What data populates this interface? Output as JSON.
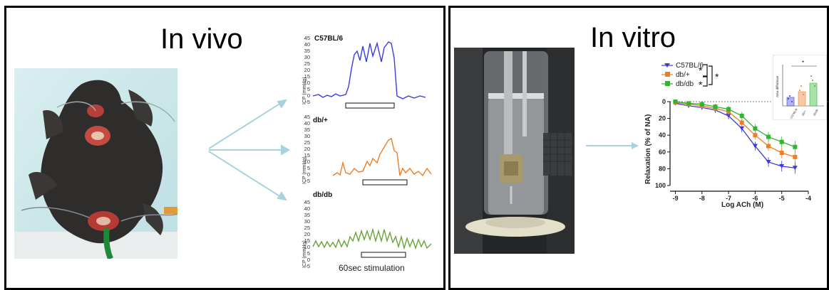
{
  "in_vivo": {
    "title": "In vivo",
    "traces": [
      {
        "label": "C57BL/6",
        "color": "#3a3ae0"
      },
      {
        "label": "db/+",
        "color": "#ef7d22"
      },
      {
        "label": "db/db",
        "color": "#6aa33a"
      }
    ],
    "y_axis_label": "ICP (mmHg)",
    "y_ticks": [
      "45",
      "40",
      "35",
      "30",
      "25",
      "20",
      "15",
      "10",
      "5",
      "0",
      "-5"
    ],
    "stimulation_label": "60sec stimulation"
  },
  "in_vitro": {
    "title": "In vitro",
    "legend": [
      {
        "label": "C57BL/6",
        "color": "#3a3ae0",
        "marker": "triangle-down"
      },
      {
        "label": "db/+",
        "color": "#ef7d22",
        "marker": "square"
      },
      {
        "label": "db/db",
        "color": "#2fb52f",
        "marker": "square"
      }
    ],
    "significance": [
      "*",
      "*",
      "*"
    ],
    "inset": {
      "ylabel": "Area difference",
      "categories": [
        "C57BL/6",
        "db/+",
        "db/db"
      ],
      "significance": "*"
    }
  },
  "chart_data": {
    "type": "line",
    "xlabel": "Log ACh (M)",
    "ylabel": "Relaxation (% of NA)",
    "x_ticks": [
      "-9",
      "-8",
      "-7",
      "-6",
      "-5",
      "-4"
    ],
    "y_ticks": [
      "0",
      "20",
      "40",
      "60",
      "80",
      "100"
    ],
    "xlim": [
      -9.2,
      -4
    ],
    "ylim": [
      0,
      100
    ],
    "y_inverted": true,
    "x": [
      -9,
      -8.5,
      -8,
      -7.5,
      -7,
      -6.5,
      -6,
      -5.5,
      -5,
      -4.5
    ],
    "series": [
      {
        "name": "C57BL/6",
        "values": [
          2,
          5,
          7,
          10,
          17,
          32,
          53,
          72,
          77,
          79
        ]
      },
      {
        "name": "db/+",
        "values": [
          1,
          3,
          5,
          8,
          12,
          25,
          40,
          53,
          61,
          66
        ]
      },
      {
        "name": "db/db",
        "values": [
          0,
          2,
          3,
          6,
          9,
          17,
          32,
          42,
          48,
          54
        ]
      }
    ]
  }
}
